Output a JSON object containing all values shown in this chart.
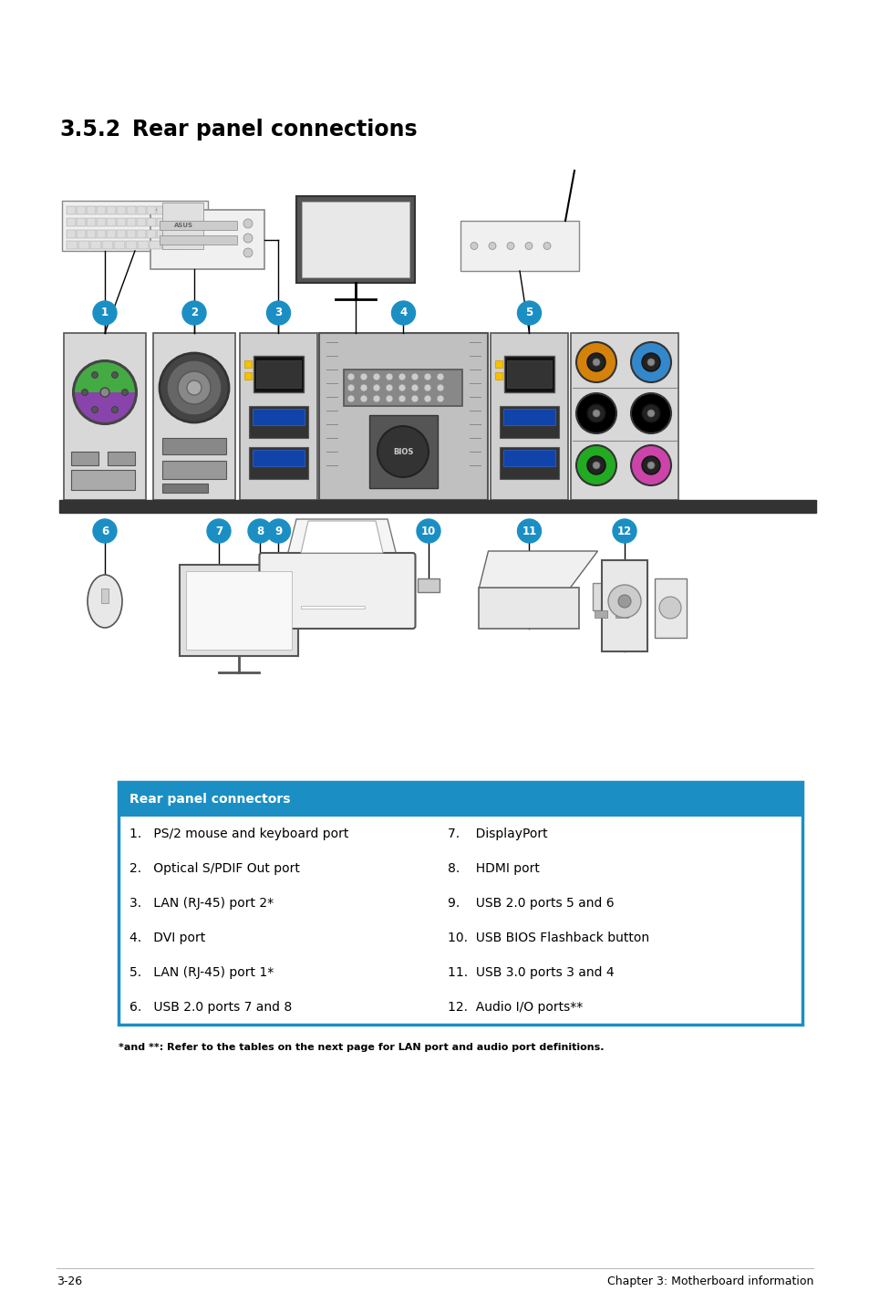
{
  "title_num": "3.5.2",
  "title_text": "Rear panel connections",
  "table_header": "Rear panel connectors",
  "table_header_bg": "#1b8fc4",
  "table_header_color": "#ffffff",
  "table_border_color": "#1b8fc4",
  "table_row_color": "#ffffff",
  "table_divider_color": "#bbbbbb",
  "left_col": [
    "1.   PS/2 mouse and keyboard port",
    "2.   Optical S/PDIF Out port",
    "3.   LAN (RJ-45) port 2*",
    "4.   DVI port",
    "5.   LAN (RJ-45) port 1*",
    "6.   USB 2.0 ports 7 and 8"
  ],
  "right_col": [
    "7.    DisplayPort",
    "8.    HDMI port",
    "9.    USB 2.0 ports 5 and 6",
    "10.  USB BIOS Flashback button",
    "11.  USB 3.0 ports 3 and 4",
    "12.  Audio I/O ports**"
  ],
  "footnote": "*and **: Refer to the tables on the next page for LAN port and audio port definitions.",
  "page_left": "3-26",
  "page_right": "Chapter 3: Motherboard information",
  "bg_color": "#ffffff",
  "text_color": "#000000",
  "title_fontsize": 17,
  "table_header_fontsize": 10,
  "table_body_fontsize": 10,
  "footnote_fontsize": 8,
  "page_fontsize": 9,
  "circle_color": "#1b8fc4",
  "shelf_color": "#333333",
  "audio_colors": [
    "#d4820a",
    "#3388cc",
    "#000000",
    "#000000",
    "#22aa22",
    "#cc44aa"
  ]
}
